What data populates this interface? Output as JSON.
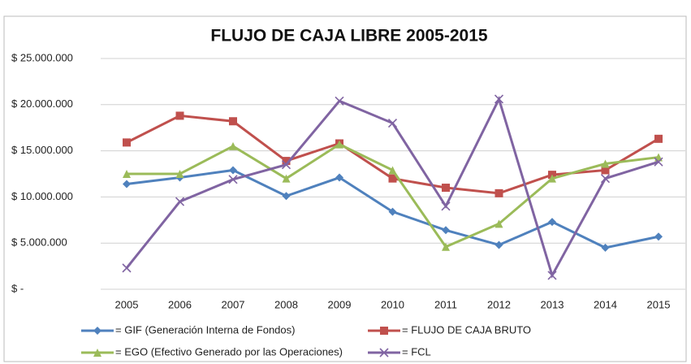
{
  "chart_data": {
    "type": "line",
    "title": "FLUJO DE CAJA LIBRE 2005-2015",
    "categories": [
      "2005",
      "2006",
      "2007",
      "2008",
      "2009",
      "2010",
      "2011",
      "2012",
      "2013",
      "2014",
      "2015"
    ],
    "ylim": [
      0,
      25000000
    ],
    "yticks": [
      {
        "value": 0,
        "label": "$ -"
      },
      {
        "value": 5000000,
        "label": "$ 5.000.000"
      },
      {
        "value": 10000000,
        "label": "$ 10.000.000"
      },
      {
        "value": 15000000,
        "label": "$ 15.000.000"
      },
      {
        "value": 20000000,
        "label": "$ 20.000.000"
      },
      {
        "value": 25000000,
        "label": "$ 25.000.000"
      }
    ],
    "grid": true,
    "legend": "bottom",
    "series": [
      {
        "name": "= GIF (Generación Interna de Fondos)",
        "color": "#4f81bd",
        "marker": "diamond",
        "values": [
          11400000,
          12100000,
          12900000,
          10100000,
          12100000,
          8400000,
          6400000,
          4800000,
          7300000,
          4500000,
          5700000
        ]
      },
      {
        "name": "= FLUJO DE CAJA BRUTO",
        "color": "#c0504d",
        "marker": "square",
        "values": [
          15900000,
          18800000,
          18200000,
          13900000,
          15800000,
          12000000,
          11000000,
          10400000,
          12400000,
          12900000,
          16300000
        ]
      },
      {
        "name": "= EGO (Efectivo Generado por las Operaciones)",
        "color": "#9bbb59",
        "marker": "triangle",
        "values": [
          12500000,
          12500000,
          15500000,
          12000000,
          15700000,
          12900000,
          4600000,
          7100000,
          12000000,
          13600000,
          14300000
        ]
      },
      {
        "name": "= FCL",
        "color": "#8064a2",
        "marker": "x",
        "values": [
          2300000,
          9500000,
          11900000,
          13500000,
          20400000,
          18000000,
          9000000,
          20600000,
          1500000,
          12000000,
          13800000
        ]
      }
    ]
  }
}
